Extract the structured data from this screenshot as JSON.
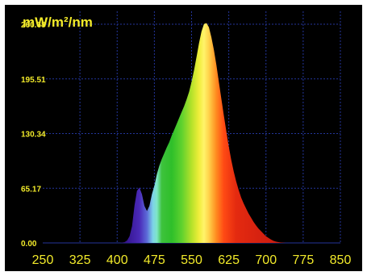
{
  "chart_data": {
    "type": "area",
    "title": "",
    "ylabel": "mW/m²/nm",
    "xlabel": "",
    "x_ticks": [
      "250",
      "325",
      "400",
      "475",
      "550",
      "625",
      "700",
      "775",
      "850"
    ],
    "y_ticks": [
      "0.00",
      "65.17",
      "130.34",
      "195.51",
      "260.68"
    ],
    "xlim": [
      250,
      850
    ],
    "ylim": [
      0,
      260.68
    ],
    "grid": true,
    "series": [
      {
        "x": [
          400,
          405,
          410,
          415,
          420,
          425,
          430,
          435,
          440,
          445,
          450,
          455,
          460,
          465,
          470,
          475,
          480,
          485,
          490,
          495,
          500,
          505,
          510,
          515,
          520,
          525,
          530,
          535,
          540,
          545,
          550,
          555,
          560,
          565,
          570,
          575,
          580,
          585,
          590,
          595,
          600,
          605,
          610,
          615,
          620,
          625,
          630,
          635,
          640,
          645,
          650,
          655,
          660,
          665,
          670,
          675,
          680,
          685,
          690,
          695,
          700,
          705,
          710,
          715,
          720,
          725,
          730,
          735,
          740,
          745,
          750,
          755,
          760,
          765,
          770,
          775,
          780,
          785,
          790,
          795,
          800
        ],
        "y": [
          0,
          0,
          0.5,
          1,
          3,
          8,
          20,
          45,
          62,
          66,
          58,
          44,
          38,
          44,
          58,
          68,
          82,
          92,
          100,
          107,
          114,
          120,
          128,
          135,
          142,
          149,
          156,
          163,
          171,
          180,
          192,
          206,
          222,
          238,
          252,
          261,
          262,
          257,
          245,
          230,
          212,
          192,
          172,
          152,
          133,
          115,
          99,
          85,
          73,
          63,
          54,
          47,
          41,
          35,
          30,
          25,
          21,
          17,
          14,
          11,
          8,
          6,
          4,
          2.5,
          1.5,
          1,
          0.5,
          0.2,
          0,
          0,
          0,
          0,
          0,
          0,
          0,
          0,
          0,
          0,
          0,
          0,
          0
        ]
      }
    ]
  }
}
